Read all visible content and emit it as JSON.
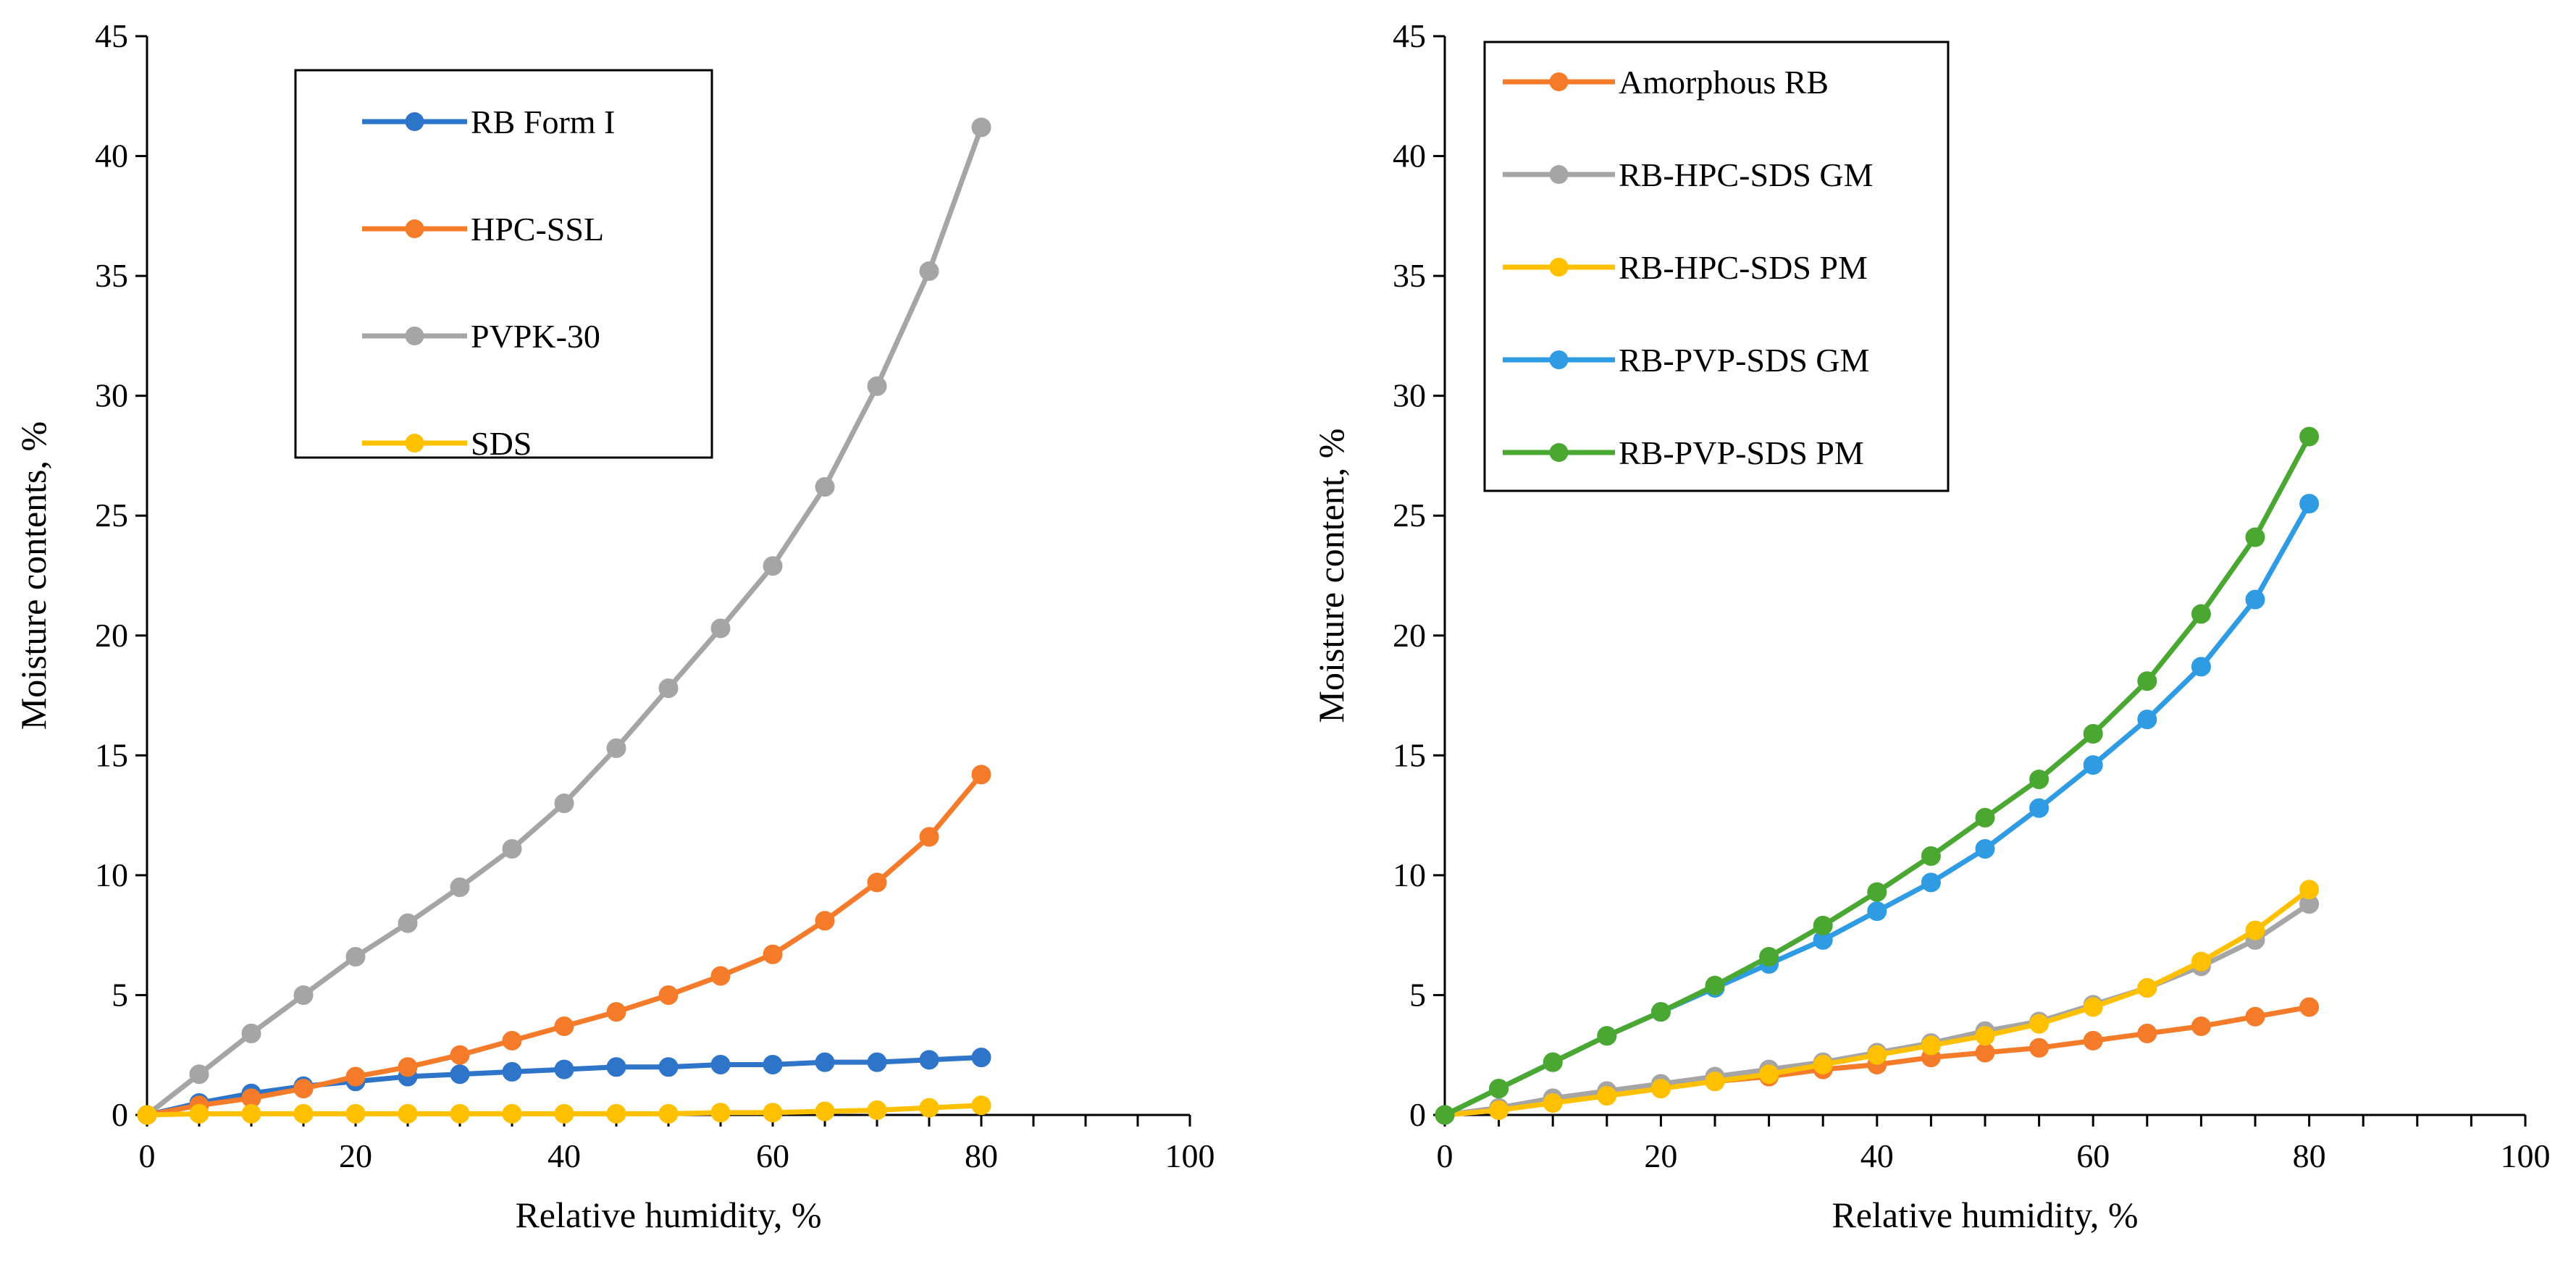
{
  "chart_data": [
    {
      "type": "line",
      "title": "",
      "xlabel": "Relative humidity, %",
      "ylabel": "Moisture contents, %",
      "xlim": [
        0,
        100
      ],
      "ylim": [
        0,
        45
      ],
      "x_major_ticks": [
        0,
        20,
        40,
        60,
        80,
        100
      ],
      "x_tick_labels": [
        "0",
        "20",
        "40",
        "60",
        "80",
        "100"
      ],
      "y_major_ticks": [
        0,
        5,
        10,
        15,
        20,
        25,
        30,
        35,
        40,
        45
      ],
      "y_tick_labels": [
        "0",
        "5",
        "10",
        "15",
        "20",
        "25",
        "30",
        "35",
        "40",
        "45"
      ],
      "x_minor_step": 5,
      "grid": false,
      "legend_position": "top-left",
      "x": [
        0,
        5,
        10,
        15,
        20,
        25,
        30,
        35,
        40,
        45,
        50,
        55,
        60,
        65,
        70,
        75,
        80
      ],
      "series": [
        {
          "name": "RB Form I",
          "color": "#2e75c9",
          "values": [
            0,
            0.5,
            0.9,
            1.2,
            1.4,
            1.6,
            1.7,
            1.8,
            1.9,
            2.0,
            2.0,
            2.1,
            2.1,
            2.2,
            2.2,
            2.3,
            2.4
          ]
        },
        {
          "name": "HPC-SSL",
          "color": "#f47b2a",
          "values": [
            0,
            0.4,
            0.7,
            1.1,
            1.6,
            2.0,
            2.5,
            3.1,
            3.7,
            4.3,
            5.0,
            5.8,
            6.7,
            8.1,
            9.7,
            11.6,
            14.2
          ]
        },
        {
          "name": "PVPK-30",
          "color": "#a5a5a5",
          "values": [
            0,
            1.7,
            3.4,
            5.0,
            6.6,
            8.0,
            9.5,
            11.1,
            13.0,
            15.3,
            17.8,
            20.3,
            22.9,
            26.2,
            30.4,
            35.2,
            41.2
          ]
        },
        {
          "name": "SDS",
          "color": "#ffc000",
          "values": [
            0,
            0.05,
            0.05,
            0.05,
            0.05,
            0.05,
            0.05,
            0.05,
            0.05,
            0.05,
            0.05,
            0.1,
            0.1,
            0.15,
            0.2,
            0.3,
            0.4
          ]
        }
      ]
    },
    {
      "type": "line",
      "title": "",
      "xlabel": "Relative humidity, %",
      "ylabel": "Moisture content, %",
      "xlim": [
        0,
        100
      ],
      "ylim": [
        0,
        45
      ],
      "x_major_ticks": [
        0,
        20,
        40,
        60,
        80,
        100
      ],
      "x_tick_labels": [
        "0",
        "20",
        "40",
        "60",
        "80",
        "100"
      ],
      "y_major_ticks": [
        0,
        5,
        10,
        15,
        20,
        25,
        30,
        35,
        40,
        45
      ],
      "y_tick_labels": [
        "0",
        "5",
        "10",
        "15",
        "20",
        "25",
        "30",
        "35",
        "40",
        "45"
      ],
      "x_minor_step": 5,
      "grid": false,
      "legend_position": "top-left",
      "x": [
        0,
        5,
        10,
        15,
        20,
        25,
        30,
        35,
        40,
        45,
        50,
        55,
        60,
        65,
        70,
        75,
        80
      ],
      "series": [
        {
          "name": "Amorphous RB",
          "color": "#f47b2a",
          "values": [
            0,
            0.2,
            0.6,
            0.9,
            1.2,
            1.4,
            1.6,
            1.9,
            2.1,
            2.4,
            2.6,
            2.8,
            3.1,
            3.4,
            3.7,
            4.1,
            4.5
          ]
        },
        {
          "name": "RB-HPC-SDS GM",
          "color": "#a5a5a5",
          "values": [
            0,
            0.3,
            0.7,
            1.0,
            1.3,
            1.6,
            1.9,
            2.2,
            2.6,
            3.0,
            3.5,
            3.9,
            4.6,
            5.3,
            6.2,
            7.3,
            8.8
          ]
        },
        {
          "name": "RB-HPC-SDS PM",
          "color": "#ffc000",
          "values": [
            0,
            0.2,
            0.5,
            0.8,
            1.1,
            1.4,
            1.7,
            2.1,
            2.5,
            2.9,
            3.3,
            3.8,
            4.5,
            5.3,
            6.4,
            7.7,
            9.4
          ]
        },
        {
          "name": "RB-PVP-SDS GM",
          "color": "#2e9be3",
          "values": [
            0,
            1.1,
            2.2,
            3.3,
            4.3,
            5.3,
            6.3,
            7.3,
            8.5,
            9.7,
            11.1,
            12.8,
            14.6,
            16.5,
            18.7,
            21.5,
            25.5
          ]
        },
        {
          "name": "RB-PVP-SDS PM",
          "color": "#4aa832",
          "values": [
            0,
            1.1,
            2.2,
            3.3,
            4.3,
            5.4,
            6.6,
            7.9,
            9.3,
            10.8,
            12.4,
            14.0,
            15.9,
            18.1,
            20.9,
            24.1,
            28.3
          ]
        }
      ]
    }
  ]
}
